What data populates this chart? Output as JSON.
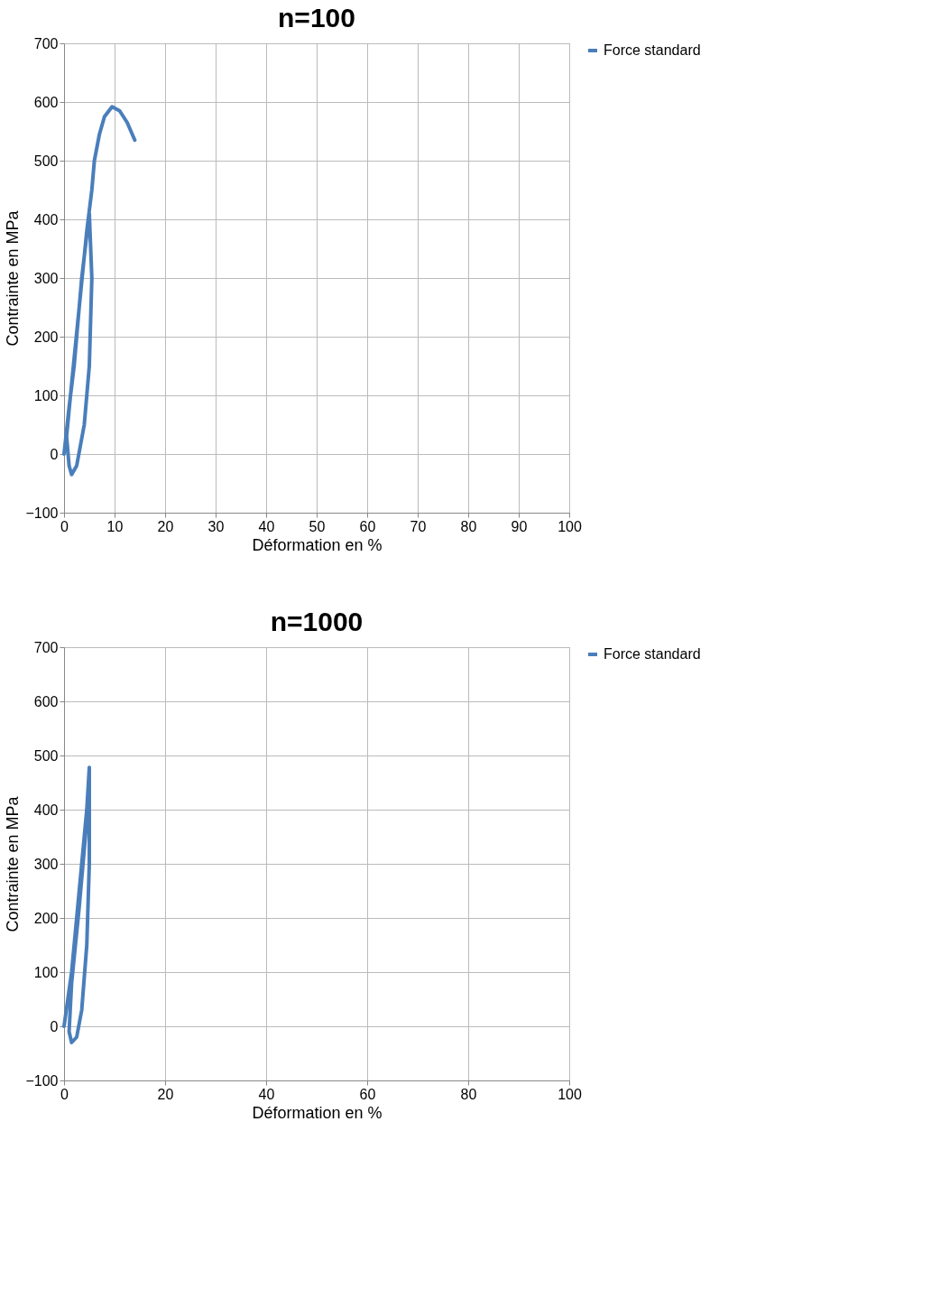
{
  "chart_data": [
    {
      "type": "line",
      "title": "n=100",
      "xlabel": "Déformation en %",
      "ylabel": "Contrainte en MPa",
      "xlim": [
        0,
        100
      ],
      "xticks": [
        0,
        10,
        20,
        30,
        40,
        50,
        60,
        70,
        80,
        90,
        100
      ],
      "ylim": [
        -100,
        700
      ],
      "yticks": [
        -100,
        0,
        100,
        200,
        300,
        400,
        500,
        600,
        700
      ],
      "grid": true,
      "legend": "right",
      "series": [
        {
          "name": "Force standard",
          "color": "#4a7ebb",
          "x": [
            0,
            1,
            2,
            3.5,
            5,
            5.5,
            5,
            4,
            2.5,
            1.5,
            1,
            0.5,
            1.5,
            3,
            4.5,
            5.5,
            6,
            7,
            8,
            9.5,
            11,
            12.5,
            14
          ],
          "values": [
            0,
            80,
            150,
            300,
            410,
            300,
            150,
            50,
            -20,
            -35,
            -20,
            30,
            120,
            250,
            380,
            450,
            500,
            545,
            575,
            592,
            585,
            565,
            535
          ]
        }
      ]
    },
    {
      "type": "line",
      "title": "n=1000",
      "xlabel": "Déformation en %",
      "ylabel": "Contrainte en MPa",
      "xlim": [
        0,
        100
      ],
      "xticks": [
        0,
        20,
        40,
        60,
        80,
        100
      ],
      "ylim": [
        -100,
        700
      ],
      "yticks": [
        -100,
        0,
        100,
        200,
        300,
        400,
        500,
        600,
        700
      ],
      "grid": true,
      "legend": "right",
      "series": [
        {
          "name": "Force standard",
          "color": "#4a7ebb",
          "x": [
            0,
            1.5,
            3,
            4.5,
            5,
            5,
            4.5,
            3.5,
            2.5,
            1.5,
            1,
            1.5,
            3,
            4.5,
            5
          ],
          "values": [
            0,
            100,
            250,
            400,
            478,
            300,
            150,
            30,
            -20,
            -30,
            -10,
            80,
            220,
            380,
            450
          ]
        }
      ]
    }
  ]
}
